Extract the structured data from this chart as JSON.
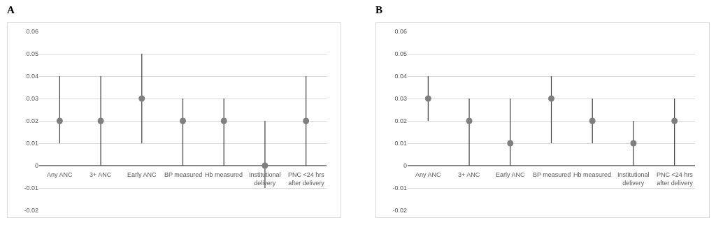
{
  "chart_data": [
    {
      "type": "scatter",
      "title": "A",
      "categories": [
        "Any ANC",
        "3+ ANC",
        "Early ANC",
        "BP measured",
        "Hb measured",
        "Institutional delivery",
        "PNC <24 hrs after delivery"
      ],
      "series": [
        {
          "color": "#7f7f7f",
          "values": [
            0.02,
            0.02,
            0.03,
            0.02,
            0.02,
            0,
            0.02
          ],
          "errors": [
            [
              0.01,
              0.04
            ],
            [
              0,
              0.04
            ],
            [
              0.01,
              0.05
            ],
            [
              0,
              0.03
            ],
            [
              0,
              0.03
            ],
            [
              -0.01,
              0.02
            ],
            [
              0,
              0.04
            ]
          ]
        }
      ],
      "ylim": [
        -0.02,
        0.06
      ],
      "yticks": [
        -0.02,
        -0.01,
        0,
        0.01,
        0.02,
        0.03,
        0.04,
        0.05,
        0.06
      ],
      "grid": "y",
      "marker": "circle"
    },
    {
      "type": "scatter",
      "title": "B",
      "categories": [
        "Any ANC",
        "3+ ANC",
        "Early ANC",
        "BP measured",
        "Hb measured",
        "Institutional delivery",
        "PNC <24 hrs after delivery"
      ],
      "series": [
        {
          "color": "#7f7f7f",
          "values": [
            0.03,
            0.02,
            0.01,
            0.03,
            0.02,
            0.01,
            0.02
          ],
          "errors": [
            [
              0.02,
              0.04
            ],
            [
              0,
              0.03
            ],
            [
              0,
              0.03
            ],
            [
              0.01,
              0.04
            ],
            [
              0.01,
              0.03
            ],
            [
              0,
              0.02
            ],
            [
              0,
              0.03
            ]
          ]
        }
      ],
      "ylim": [
        -0.02,
        0.06
      ],
      "yticks": [
        -0.02,
        -0.01,
        0,
        0.01,
        0.02,
        0.03,
        0.04,
        0.05,
        0.06
      ],
      "grid": "y",
      "marker": "circle"
    }
  ]
}
